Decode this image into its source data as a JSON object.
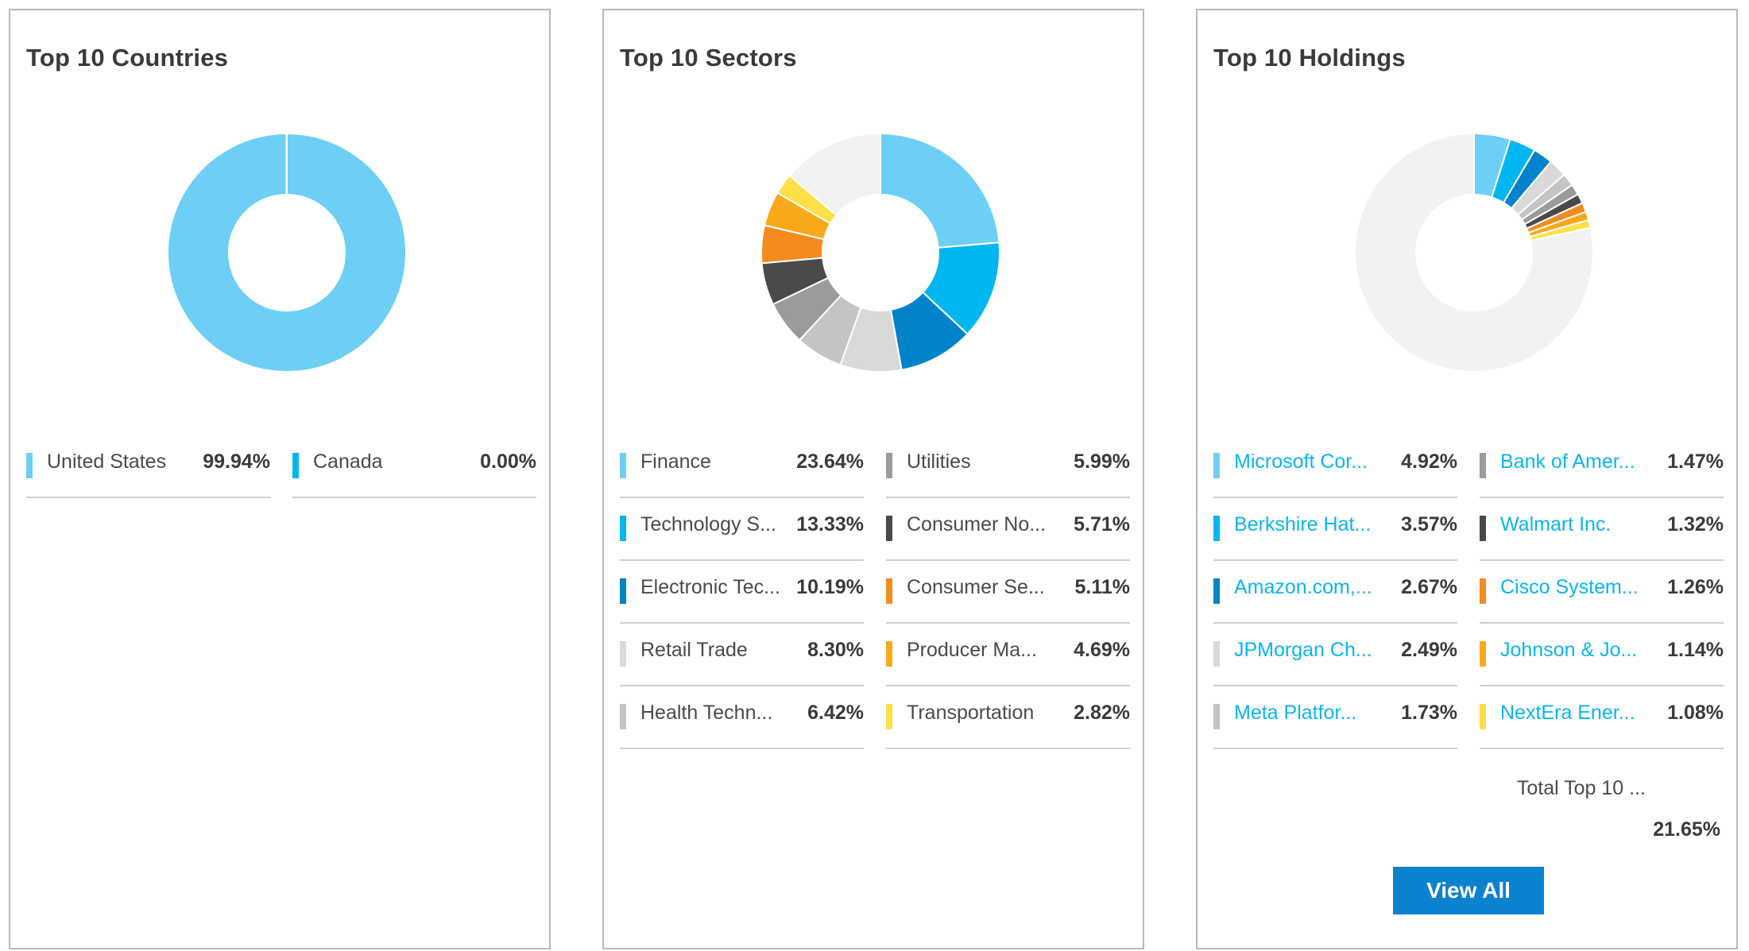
{
  "cards": [
    {
      "title": "Top 10 Countries"
    },
    {
      "title": "Top 10 Sectors"
    },
    {
      "title": "Top 10 Holdings",
      "total_label": "Total Top 10 ...",
      "total_value": "21.65%",
      "button_label": "View All"
    }
  ],
  "chart_data": [
    {
      "type": "pie",
      "title": "Top 10 Countries",
      "donut": true,
      "remainder_color": "#f2f2f2",
      "slices": [
        {
          "label": "United States",
          "value": 99.94,
          "display": "99.94%",
          "color": "#6dcff6"
        },
        {
          "label": "Canada",
          "value": 0.0,
          "display": "0.00%",
          "color": "#00b6f0"
        }
      ]
    },
    {
      "type": "pie",
      "title": "Top 10 Sectors",
      "donut": true,
      "remainder_color": "#f2f2f2",
      "slices": [
        {
          "label": "Finance",
          "value": 23.64,
          "display": "23.64%",
          "color": "#6dcff6"
        },
        {
          "label": "Technology S...",
          "value": 13.33,
          "display": "13.33%",
          "color": "#00b6f0"
        },
        {
          "label": "Electronic Tec...",
          "value": 10.19,
          "display": "10.19%",
          "color": "#0083cb"
        },
        {
          "label": "Retail Trade",
          "value": 8.3,
          "display": "8.30%",
          "color": "#d9d9d9"
        },
        {
          "label": "Health Techn...",
          "value": 6.42,
          "display": "6.42%",
          "color": "#c4c4c4"
        },
        {
          "label": "Utilities",
          "value": 5.99,
          "display": "5.99%",
          "color": "#9b9b9b"
        },
        {
          "label": "Consumer No...",
          "value": 5.71,
          "display": "5.71%",
          "color": "#4a4a4c"
        },
        {
          "label": "Consumer Se...",
          "value": 5.11,
          "display": "5.11%",
          "color": "#f58b1f"
        },
        {
          "label": "Producer Ma...",
          "value": 4.69,
          "display": "4.69%",
          "color": "#f9a81a"
        },
        {
          "label": "Transportation",
          "value": 2.82,
          "display": "2.82%",
          "color": "#fde047"
        }
      ]
    },
    {
      "type": "pie",
      "title": "Top 10 Holdings",
      "donut": true,
      "remainder_color": "#f2f2f2",
      "slices": [
        {
          "label": "Microsoft Cor...",
          "value": 4.92,
          "display": "4.92%",
          "color": "#6dcff6"
        },
        {
          "label": "Berkshire Hat...",
          "value": 3.57,
          "display": "3.57%",
          "color": "#00b6f0"
        },
        {
          "label": "Amazon.com,...",
          "value": 2.67,
          "display": "2.67%",
          "color": "#0083cb"
        },
        {
          "label": "JPMorgan Ch...",
          "value": 2.49,
          "display": "2.49%",
          "color": "#d9d9d9"
        },
        {
          "label": "Meta Platfor...",
          "value": 1.73,
          "display": "1.73%",
          "color": "#c4c4c4"
        },
        {
          "label": "Bank of Amer...",
          "value": 1.47,
          "display": "1.47%",
          "color": "#9b9b9b"
        },
        {
          "label": "Walmart Inc.",
          "value": 1.32,
          "display": "1.32%",
          "color": "#4a4a4c"
        },
        {
          "label": "Cisco System...",
          "value": 1.26,
          "display": "1.26%",
          "color": "#f58b1f"
        },
        {
          "label": "Johnson & Jo...",
          "value": 1.14,
          "display": "1.14%",
          "color": "#f9a81a"
        },
        {
          "label": "NextEra Ener...",
          "value": 1.08,
          "display": "1.08%",
          "color": "#fde047"
        }
      ]
    }
  ]
}
